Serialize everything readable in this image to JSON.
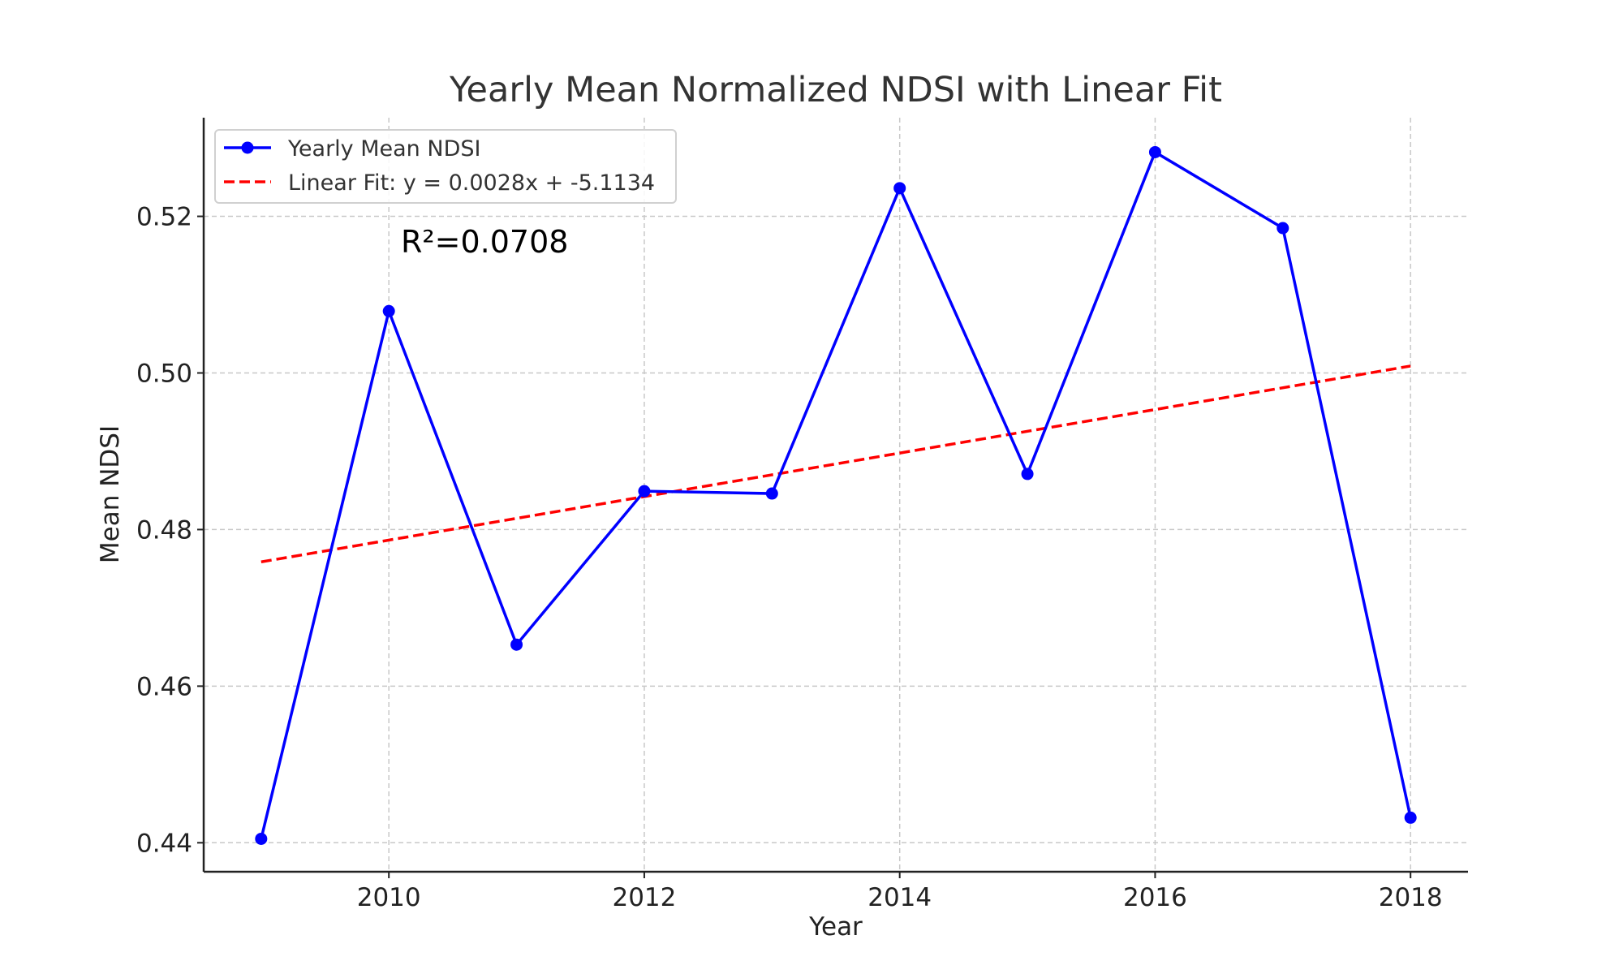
{
  "chart_data": {
    "type": "line",
    "title": "Yearly Mean Normalized NDSI with Linear Fit",
    "xlabel": "Year",
    "ylabel": "Mean NDSI",
    "xlim": [
      2008.55,
      2018.45
    ],
    "ylim": [
      0.4363,
      0.5326
    ],
    "grid": true,
    "legend_placement": "top-left",
    "x_ticks": [
      2010,
      2012,
      2014,
      2016,
      2018
    ],
    "x_tick_labels": [
      "2010",
      "2012",
      "2014",
      "2016",
      "2018"
    ],
    "y_ticks": [
      0.44,
      0.46,
      0.48,
      0.5,
      0.52
    ],
    "y_tick_labels": [
      "0.44",
      "0.46",
      "0.48",
      "0.50",
      "0.52"
    ],
    "x": [
      2009,
      2010,
      2011,
      2012,
      2013,
      2014,
      2015,
      2016,
      2017,
      2018
    ],
    "series": [
      {
        "name": "Yearly Mean NDSI",
        "color": "#0000ff",
        "style": "solid-markers",
        "values": [
          0.4405,
          0.5079,
          0.4653,
          0.4849,
          0.4846,
          0.5236,
          0.4871,
          0.5282,
          0.5185,
          0.4432
        ]
      },
      {
        "name": "Linear Fit: y = 0.0028x + -5.1134",
        "color": "#ff0000",
        "style": "dashed"
      }
    ],
    "annotation": "R²=0.0708"
  }
}
